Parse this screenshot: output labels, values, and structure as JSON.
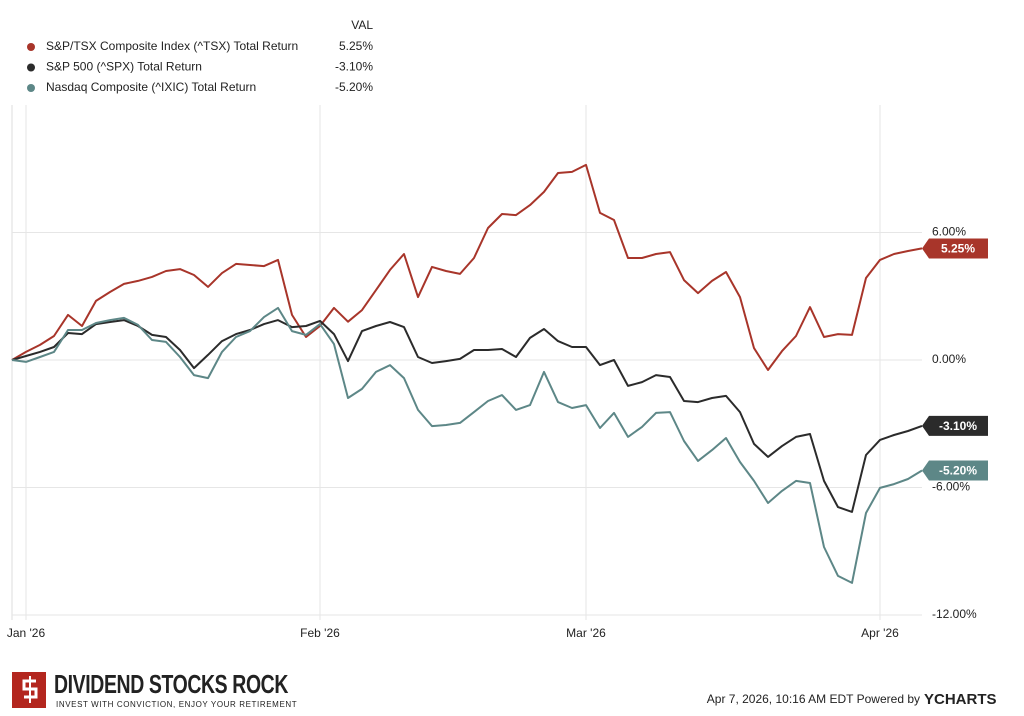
{
  "chart_data": {
    "type": "line",
    "legend_header": "VAL",
    "categories": [
      null,
      "Jan '26",
      null,
      null,
      null,
      null,
      null,
      null,
      null,
      null,
      null,
      null,
      null,
      null,
      null,
      null,
      null,
      null,
      null,
      null,
      null,
      null,
      "Feb '26",
      null,
      null,
      null,
      null,
      null,
      null,
      null,
      null,
      null,
      null,
      null,
      null,
      null,
      null,
      null,
      null,
      null,
      null,
      "Mar '26",
      null,
      null,
      null,
      null,
      null,
      null,
      null,
      null,
      null,
      null,
      null,
      null,
      null,
      null,
      null,
      null,
      null,
      null,
      null,
      null,
      "Apr '26",
      null,
      null,
      null
    ],
    "series": [
      {
        "name": "S&P/TSX Composite Index (^TSX) Total Return",
        "color": "#a8352a",
        "end_value": {
          "value": 5.25,
          "label": "5.25%"
        },
        "values": [
          0,
          0.38,
          0.71,
          1.13,
          2.12,
          1.6,
          2.78,
          3.2,
          3.58,
          3.72,
          3.91,
          4.19,
          4.28,
          4.0,
          3.44,
          4.09,
          4.52,
          4.47,
          4.42,
          4.71,
          2.12,
          1.08,
          1.6,
          2.45,
          1.8,
          2.35,
          3.29,
          4.24,
          4.99,
          2.96,
          4.38,
          4.19,
          4.05,
          4.8,
          6.21,
          6.87,
          6.82,
          7.29,
          7.91,
          8.8,
          8.85,
          9.18,
          6.92,
          6.59,
          4.8,
          4.8,
          4.99,
          5.08,
          3.76,
          3.15,
          3.72,
          4.14,
          2.96,
          0.56,
          -0.47,
          0.42,
          1.13,
          2.49,
          1.08,
          1.22,
          1.18,
          3.86,
          4.71,
          4.99,
          5.13,
          5.25
        ]
      },
      {
        "name": "S&P 500 (^SPX) Total Return",
        "color": "#2b2b2b",
        "end_value": {
          "value": -3.1,
          "label": "-3.10%"
        },
        "values": [
          0,
          0.19,
          0.38,
          0.61,
          1.27,
          1.22,
          1.69,
          1.79,
          1.88,
          1.6,
          1.18,
          1.08,
          0.47,
          -0.38,
          0.24,
          0.89,
          1.22,
          1.41,
          1.69,
          1.88,
          1.55,
          1.6,
          1.84,
          1.22,
          -0.05,
          1.36,
          1.6,
          1.79,
          1.55,
          0.14,
          -0.14,
          -0.05,
          0.05,
          0.47,
          0.47,
          0.52,
          0.14,
          1.04,
          1.46,
          0.89,
          0.61,
          0.61,
          -0.24,
          0,
          -1.22,
          -1.04,
          -0.71,
          -0.8,
          -1.93,
          -1.98,
          -1.79,
          -1.69,
          -2.45,
          -3.95,
          -4.56,
          -4.05,
          -3.62,
          -3.48,
          -5.69,
          -6.92,
          -7.15,
          -4.47,
          -3.76,
          -3.53,
          -3.34,
          -3.1
        ]
      },
      {
        "name": "Nasdaq Composite (^IXIC) Total Return",
        "color": "#5d8787",
        "end_value": {
          "value": -5.2,
          "label": "-5.20%"
        },
        "values": [
          0,
          -0.09,
          0.14,
          0.38,
          1.41,
          1.41,
          1.74,
          1.88,
          1.98,
          1.65,
          0.94,
          0.85,
          0.14,
          -0.71,
          -0.85,
          0.38,
          1.08,
          1.36,
          2.02,
          2.45,
          1.36,
          1.18,
          1.69,
          0.75,
          -1.79,
          -1.36,
          -0.56,
          -0.24,
          -0.85,
          -2.35,
          -3.11,
          -3.06,
          -2.96,
          -2.45,
          -1.93,
          -1.65,
          -2.35,
          -2.12,
          -0.56,
          -1.98,
          -2.26,
          -2.12,
          -3.2,
          -2.49,
          -3.62,
          -3.15,
          -2.49,
          -2.45,
          -3.81,
          -4.75,
          -4.24,
          -3.67,
          -4.8,
          -5.69,
          -6.73,
          -6.16,
          -5.69,
          -5.79,
          -8.8,
          -10.16,
          -10.49,
          -7.2,
          -6.02,
          -5.84,
          -5.6,
          -5.2
        ]
      }
    ],
    "ylim": [
      -12,
      12
    ],
    "yticks": [
      {
        "value": 6,
        "label": "6.00%"
      },
      {
        "value": 0,
        "label": "0.00%"
      },
      {
        "value": -6,
        "label": "-6.00%"
      },
      {
        "value": -12,
        "label": "-12.00%"
      }
    ],
    "grid": true
  },
  "footer": {
    "brand": "DIVIDEND STOCKS ROCK",
    "tagline": "INVEST WITH CONVICTION, ENJOY YOUR RETIREMENT",
    "timestamp": "Apr 7, 2026, 10:16 AM EDT Powered by",
    "provider": "YCHARTS"
  }
}
